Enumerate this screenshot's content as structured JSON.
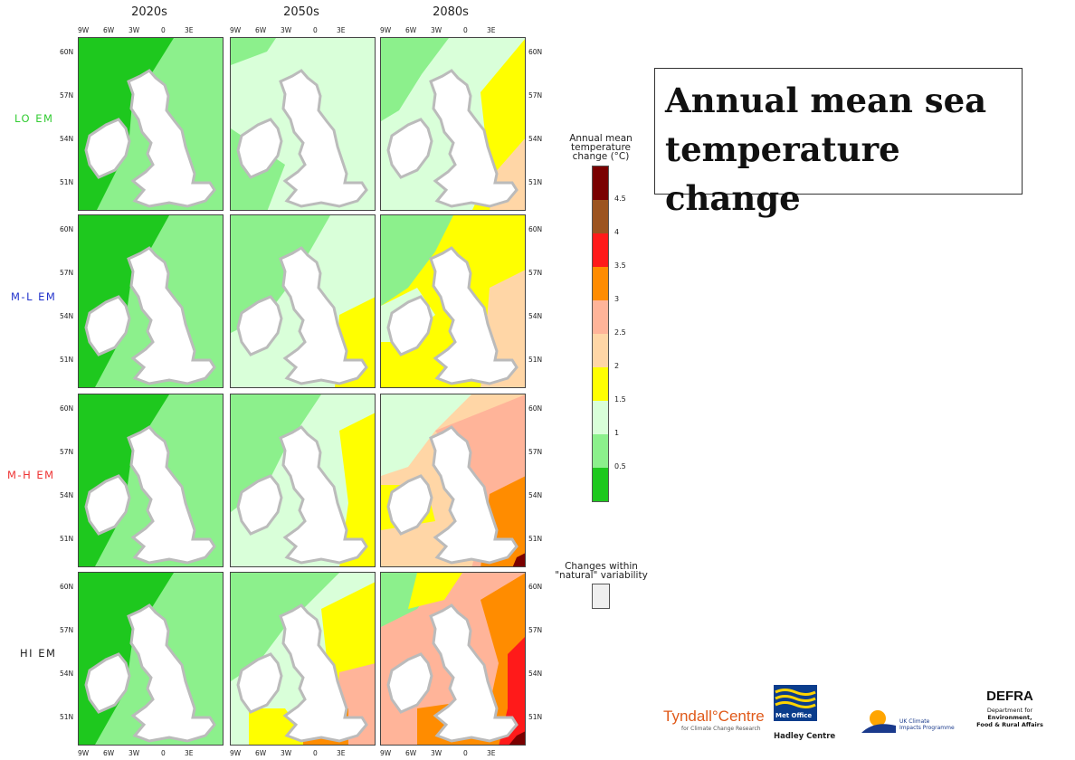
{
  "title": "Annual mean sea temperature change",
  "columns": [
    "2020s",
    "2050s",
    "2080s"
  ],
  "rows": [
    {
      "label": "LO EM",
      "color": "#33cc33"
    },
    {
      "label": "M-L EM",
      "color": "#2233cc"
    },
    {
      "label": "M-H EM",
      "color": "#ee3333"
    },
    {
      "label": "HI EM",
      "color": "#222222"
    }
  ],
  "lon_ticks": [
    "9W",
    "6W",
    "3W",
    "0",
    "3E"
  ],
  "lat_ticks": [
    "60N",
    "57N",
    "54N",
    "51N"
  ],
  "legend": {
    "title_lines": [
      "Annual mean",
      "temperature",
      "change (°C)"
    ],
    "levels": [
      {
        "value": "4.5",
        "color": "#7a0000"
      },
      {
        "value": "4",
        "color": "#9c5420"
      },
      {
        "value": "3.5",
        "color": "#ff1a1a"
      },
      {
        "value": "3",
        "color": "#ff8c00"
      },
      {
        "value": "2.5",
        "color": "#ffb499"
      },
      {
        "value": "2",
        "color": "#ffd6a6"
      },
      {
        "value": "1.5",
        "color": "#ffff00"
      },
      {
        "value": "1",
        "color": "#d9ffd9"
      },
      {
        "value": "0.5",
        "color": "#8cf08c"
      },
      {
        "value": "",
        "color": "#1ec81e"
      }
    ],
    "natural_title_lines": [
      "Changes within",
      "\"natural\" variability"
    ],
    "natural_color": "#efefef"
  },
  "logos": {
    "tyndall": "Tyndall°Centre",
    "tyndall_sub": "for Climate Change Research",
    "met_office": "Met Office",
    "hadley": "Hadley Centre",
    "ukcip_line1": "UK Climate",
    "ukcip_line2": "Impacts Programme",
    "defra": "DEFRA",
    "defra_sub1": "Department for",
    "defra_sub2": "Environment,",
    "defra_sub3": "Food & Rural Affairs"
  }
}
